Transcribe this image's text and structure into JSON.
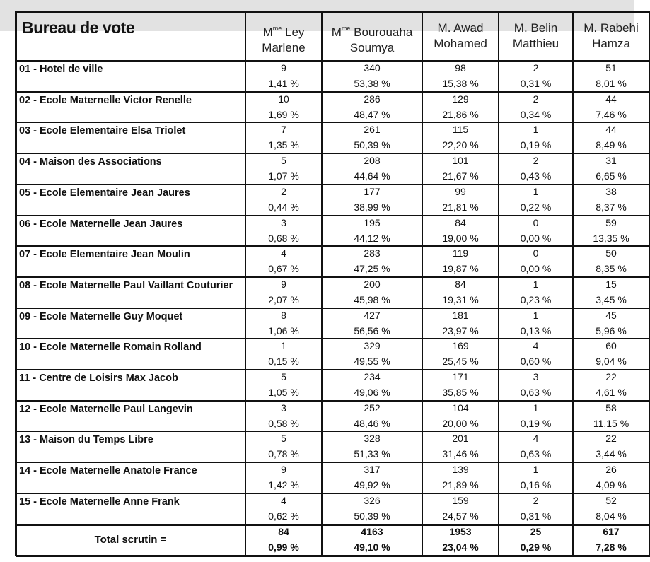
{
  "header": {
    "title": "Bureau de vote",
    "candidates": [
      {
        "title": "M",
        "title_sup": "me",
        "line1": "Ley",
        "line2": "Marlene"
      },
      {
        "title": "M",
        "title_sup": "me",
        "line1": "Bourouaha",
        "line2": "Soumya"
      },
      {
        "title": "M.",
        "line1": "Awad",
        "line2": "Mohamed"
      },
      {
        "title": "M.",
        "line1": "Belin",
        "line2": "Matthieu"
      },
      {
        "title": "M.",
        "line1": "Rabehi",
        "line2": "Hamza"
      }
    ]
  },
  "table": {
    "rows": [
      {
        "name": "01 - Hotel de ville",
        "votes": [
          9,
          340,
          98,
          2,
          51
        ],
        "percents": [
          "1,41 %",
          "53,38 %",
          "15,38 %",
          "0,31 %",
          "8,01 %"
        ]
      },
      {
        "name": "02 - Ecole Maternelle Victor Renelle",
        "votes": [
          10,
          286,
          129,
          2,
          44
        ],
        "percents": [
          "1,69 %",
          "48,47 %",
          "21,86 %",
          "0,34 %",
          "7,46 %"
        ]
      },
      {
        "name": "03 - Ecole Elementaire Elsa Triolet",
        "votes": [
          7,
          261,
          115,
          1,
          44
        ],
        "percents": [
          "1,35 %",
          "50,39 %",
          "22,20 %",
          "0,19 %",
          "8,49 %"
        ]
      },
      {
        "name": "04 - Maison des Associations",
        "votes": [
          5,
          208,
          101,
          2,
          31
        ],
        "percents": [
          "1,07 %",
          "44,64 %",
          "21,67 %",
          "0,43 %",
          "6,65 %"
        ]
      },
      {
        "name": "05 - Ecole Elementaire Jean Jaures",
        "votes": [
          2,
          177,
          99,
          1,
          38
        ],
        "percents": [
          "0,44 %",
          "38,99 %",
          "21,81 %",
          "0,22 %",
          "8,37 %"
        ]
      },
      {
        "name": "06 - Ecole Maternelle Jean Jaures",
        "votes": [
          3,
          195,
          84,
          0,
          59
        ],
        "percents": [
          "0,68 %",
          "44,12 %",
          "19,00 %",
          "0,00 %",
          "13,35 %"
        ]
      },
      {
        "name": "07 - Ecole Elementaire Jean Moulin",
        "votes": [
          4,
          283,
          119,
          0,
          50
        ],
        "percents": [
          "0,67 %",
          "47,25 %",
          "19,87 %",
          "0,00 %",
          "8,35 %"
        ]
      },
      {
        "name": "08 - Ecole Maternelle Paul Vaillant Couturier",
        "votes": [
          9,
          200,
          84,
          1,
          15
        ],
        "percents": [
          "2,07 %",
          "45,98 %",
          "19,31 %",
          "0,23 %",
          "3,45 %"
        ]
      },
      {
        "name": "09 - Ecole Maternelle Guy Moquet",
        "votes": [
          8,
          427,
          181,
          1,
          45
        ],
        "percents": [
          "1,06 %",
          "56,56 %",
          "23,97 %",
          "0,13 %",
          "5,96 %"
        ]
      },
      {
        "name": "10 - Ecole Maternelle Romain Rolland",
        "votes": [
          1,
          329,
          169,
          4,
          60
        ],
        "percents": [
          "0,15 %",
          "49,55 %",
          "25,45 %",
          "0,60 %",
          "9,04 %"
        ]
      },
      {
        "name": "11 - Centre de Loisirs Max Jacob",
        "votes": [
          5,
          234,
          171,
          3,
          22
        ],
        "percents": [
          "1,05 %",
          "49,06 %",
          "35,85 %",
          "0,63 %",
          "4,61 %"
        ]
      },
      {
        "name": "12 - Ecole Maternelle Paul Langevin",
        "votes": [
          3,
          252,
          104,
          1,
          58
        ],
        "percents": [
          "0,58 %",
          "48,46 %",
          "20,00 %",
          "0,19 %",
          "11,15 %"
        ]
      },
      {
        "name": "13 - Maison du Temps Libre",
        "votes": [
          5,
          328,
          201,
          4,
          22
        ],
        "percents": [
          "0,78 %",
          "51,33 %",
          "31,46 %",
          "0,63 %",
          "3,44 %"
        ]
      },
      {
        "name": "14 - Ecole Maternelle Anatole France",
        "votes": [
          9,
          317,
          139,
          1,
          26
        ],
        "percents": [
          "1,42 %",
          "49,92 %",
          "21,89 %",
          "0,16 %",
          "4,09 %"
        ]
      },
      {
        "name": "15 - Ecole Maternelle Anne Frank",
        "votes": [
          4,
          326,
          159,
          2,
          52
        ],
        "percents": [
          "0,62 %",
          "50,39 %",
          "24,57 %",
          "0,31 %",
          "8,04 %"
        ]
      }
    ],
    "total": {
      "label": "Total scrutin =",
      "votes": [
        84,
        4163,
        1953,
        25,
        617
      ],
      "percents": [
        "0,99 %",
        "49,10 %",
        "23,04 %",
        "0,29 %",
        "7,28 %"
      ]
    }
  }
}
